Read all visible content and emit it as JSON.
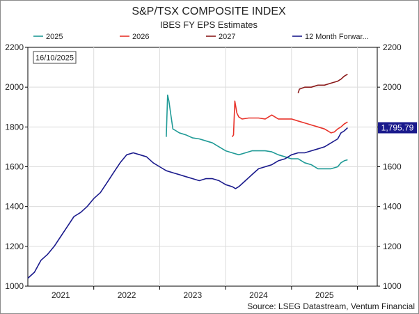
{
  "chart_data": {
    "type": "line",
    "title": "S&P/TSX COMPOSITE INDEX",
    "subtitle": "IBES FY EPS Estimates",
    "date_label": "16/10/2025",
    "source": "Source: LSEG Datastream, Ventum Financial",
    "last_value_label": "1,795.79",
    "ylim": [
      1000,
      2200
    ],
    "yticks": [
      1000,
      1200,
      1400,
      1600,
      1800,
      2000,
      2200
    ],
    "ytick_labels": [
      "1000",
      "1200",
      "1400",
      "1600",
      "1800",
      "2000",
      "2200"
    ],
    "xlim": [
      2020.5,
      2025.8
    ],
    "xticks": [
      2021,
      2022,
      2023,
      2024,
      2025
    ],
    "xtick_labels": [
      "2021",
      "2022",
      "2023",
      "2024",
      "2025"
    ],
    "year_boundaries": [
      2021.5,
      2022.5,
      2023.5,
      2024.5,
      2025.5
    ],
    "grid": true,
    "legend_position": "top",
    "series": [
      {
        "name": "2025",
        "color": "#1f9a96",
        "points": [
          [
            2022.6,
            1750
          ],
          [
            2022.62,
            1960
          ],
          [
            2022.64,
            1930
          ],
          [
            2022.67,
            1860
          ],
          [
            2022.7,
            1790
          ],
          [
            2022.75,
            1780
          ],
          [
            2022.8,
            1770
          ],
          [
            2022.9,
            1760
          ],
          [
            2023.0,
            1745
          ],
          [
            2023.1,
            1740
          ],
          [
            2023.2,
            1730
          ],
          [
            2023.3,
            1720
          ],
          [
            2023.4,
            1700
          ],
          [
            2023.5,
            1680
          ],
          [
            2023.6,
            1670
          ],
          [
            2023.7,
            1660
          ],
          [
            2023.8,
            1670
          ],
          [
            2023.9,
            1680
          ],
          [
            2024.0,
            1680
          ],
          [
            2024.1,
            1680
          ],
          [
            2024.2,
            1675
          ],
          [
            2024.3,
            1660
          ],
          [
            2024.4,
            1650
          ],
          [
            2024.5,
            1640
          ],
          [
            2024.6,
            1640
          ],
          [
            2024.7,
            1620
          ],
          [
            2024.8,
            1610
          ],
          [
            2024.9,
            1590
          ],
          [
            2025.0,
            1590
          ],
          [
            2025.1,
            1590
          ],
          [
            2025.2,
            1600
          ],
          [
            2025.25,
            1620
          ],
          [
            2025.3,
            1630
          ],
          [
            2025.35,
            1635
          ]
        ]
      },
      {
        "name": "2026",
        "color": "#e8332a",
        "points": [
          [
            2023.6,
            1750
          ],
          [
            2023.62,
            1760
          ],
          [
            2023.64,
            1930
          ],
          [
            2023.67,
            1870
          ],
          [
            2023.7,
            1850
          ],
          [
            2023.75,
            1840
          ],
          [
            2023.85,
            1845
          ],
          [
            2024.0,
            1845
          ],
          [
            2024.1,
            1840
          ],
          [
            2024.2,
            1860
          ],
          [
            2024.3,
            1840
          ],
          [
            2024.4,
            1840
          ],
          [
            2024.5,
            1840
          ],
          [
            2024.6,
            1830
          ],
          [
            2024.7,
            1820
          ],
          [
            2024.8,
            1810
          ],
          [
            2024.9,
            1800
          ],
          [
            2025.0,
            1790
          ],
          [
            2025.05,
            1780
          ],
          [
            2025.1,
            1770
          ],
          [
            2025.15,
            1775
          ],
          [
            2025.2,
            1790
          ],
          [
            2025.25,
            1800
          ],
          [
            2025.3,
            1815
          ],
          [
            2025.35,
            1825
          ]
        ]
      },
      {
        "name": "2027",
        "color": "#8b1a1a",
        "points": [
          [
            2024.6,
            1970
          ],
          [
            2024.62,
            1990
          ],
          [
            2024.7,
            2000
          ],
          [
            2024.8,
            2000
          ],
          [
            2024.9,
            2010
          ],
          [
            2025.0,
            2010
          ],
          [
            2025.1,
            2020
          ],
          [
            2025.2,
            2030
          ],
          [
            2025.25,
            2040
          ],
          [
            2025.3,
            2055
          ],
          [
            2025.35,
            2065
          ]
        ]
      },
      {
        "name": "12 Month Forwar...",
        "color": "#1a1a8c",
        "points": [
          [
            2020.5,
            1040
          ],
          [
            2020.6,
            1070
          ],
          [
            2020.7,
            1130
          ],
          [
            2020.8,
            1160
          ],
          [
            2020.9,
            1200
          ],
          [
            2021.0,
            1250
          ],
          [
            2021.1,
            1300
          ],
          [
            2021.2,
            1350
          ],
          [
            2021.3,
            1370
          ],
          [
            2021.4,
            1400
          ],
          [
            2021.5,
            1440
          ],
          [
            2021.6,
            1470
          ],
          [
            2021.7,
            1520
          ],
          [
            2021.8,
            1570
          ],
          [
            2021.9,
            1620
          ],
          [
            2022.0,
            1660
          ],
          [
            2022.1,
            1670
          ],
          [
            2022.2,
            1660
          ],
          [
            2022.3,
            1650
          ],
          [
            2022.4,
            1620
          ],
          [
            2022.5,
            1600
          ],
          [
            2022.6,
            1580
          ],
          [
            2022.7,
            1570
          ],
          [
            2022.8,
            1560
          ],
          [
            2022.9,
            1550
          ],
          [
            2023.0,
            1540
          ],
          [
            2023.1,
            1530
          ],
          [
            2023.2,
            1540
          ],
          [
            2023.3,
            1540
          ],
          [
            2023.4,
            1530
          ],
          [
            2023.5,
            1510
          ],
          [
            2023.6,
            1500
          ],
          [
            2023.65,
            1490
          ],
          [
            2023.7,
            1500
          ],
          [
            2023.8,
            1530
          ],
          [
            2023.9,
            1560
          ],
          [
            2024.0,
            1590
          ],
          [
            2024.1,
            1600
          ],
          [
            2024.2,
            1610
          ],
          [
            2024.3,
            1630
          ],
          [
            2024.4,
            1640
          ],
          [
            2024.5,
            1660
          ],
          [
            2024.6,
            1670
          ],
          [
            2024.7,
            1670
          ],
          [
            2024.8,
            1680
          ],
          [
            2024.9,
            1690
          ],
          [
            2025.0,
            1700
          ],
          [
            2025.1,
            1720
          ],
          [
            2025.2,
            1740
          ],
          [
            2025.25,
            1770
          ],
          [
            2025.3,
            1780
          ],
          [
            2025.35,
            1796
          ]
        ]
      }
    ]
  }
}
